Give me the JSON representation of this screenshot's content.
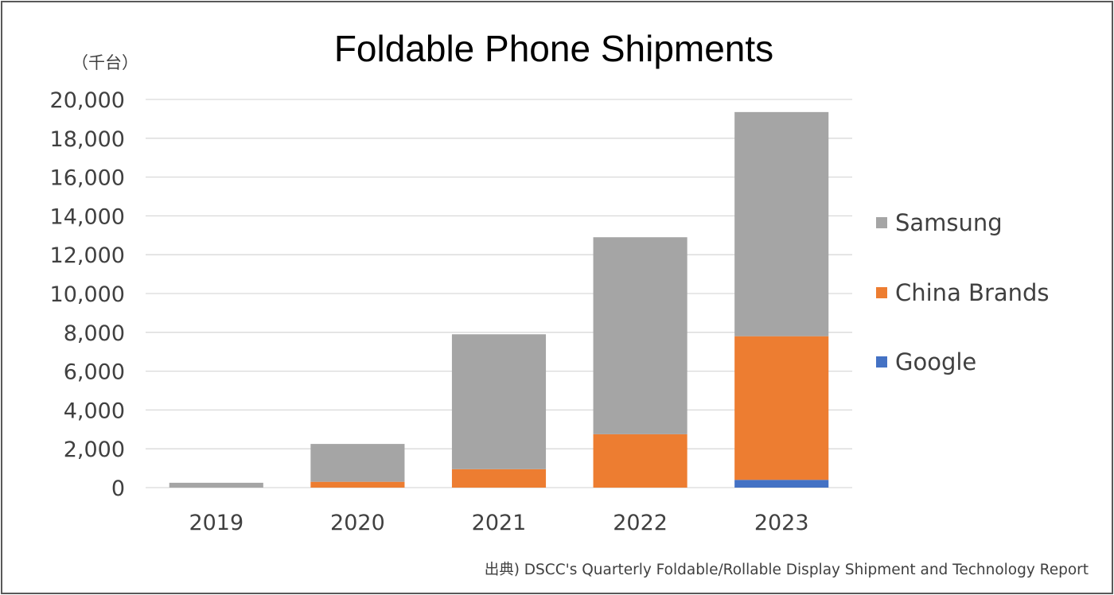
{
  "chart_data": {
    "type": "bar",
    "stacked": true,
    "title": "Foldable Phone Shipments",
    "unit_label": "（千台）",
    "categories": [
      "2019",
      "2020",
      "2021",
      "2022",
      "2023"
    ],
    "series": [
      {
        "name": "Google",
        "color": "#4472C4",
        "values": [
          0,
          0,
          0,
          0,
          400
        ]
      },
      {
        "name": "China Brands",
        "color": "#ED7D31",
        "values": [
          0,
          300,
          950,
          2750,
          7400
        ]
      },
      {
        "name": "Samsung",
        "color": "#A5A5A5",
        "values": [
          250,
          1950,
          6950,
          10150,
          11550
        ]
      }
    ],
    "y_ticks": [
      "0",
      "2,000",
      "4,000",
      "6,000",
      "8,000",
      "10,000",
      "12,000",
      "14,000",
      "16,000",
      "18,000",
      "20,000"
    ],
    "ylim": [
      0,
      20000
    ],
    "grid": true,
    "legend_position": "right",
    "legend_order": [
      "Samsung",
      "China Brands",
      "Google"
    ],
    "source": "出典) DSCC's Quarterly Foldable/Rollable Display Shipment and Technology Report"
  },
  "colors": {
    "grid": "#D9D9D9",
    "axis": "#D9D9D9"
  }
}
